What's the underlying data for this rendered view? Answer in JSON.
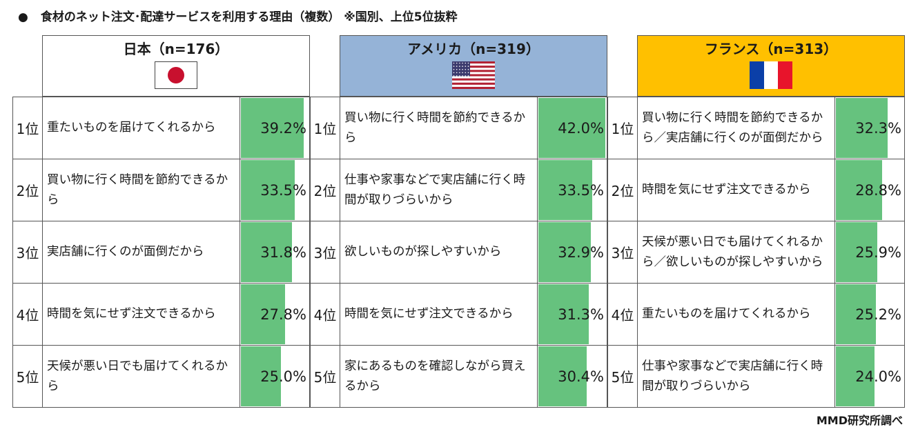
{
  "title_bullet": "●",
  "title": "食材のネット注文･配達サービスを利用する理由（複数） ※国別、上位5位抜粋",
  "footer": "MMD研究所調べ",
  "colors": {
    "bar": "#66c27e",
    "usa_header": "#95b3d7",
    "france_header": "#ffc000",
    "japan_header": "#ffffff"
  },
  "chart_data": [
    {
      "type": "table",
      "country": "日本（n=176）",
      "flag": "japan-flag",
      "ranks": [
        "1位",
        "2位",
        "3位",
        "4位",
        "5位"
      ],
      "reasons": [
        "重たいものを届けてくれるから",
        "買い物に行く時間を節約できるから",
        "実店舗に行くのが面倒だから",
        "時間を気にせず注文できるから",
        "天候が悪い日でも届けてくれるから"
      ],
      "values": [
        39.2,
        33.5,
        31.8,
        27.8,
        25.0
      ],
      "labels": [
        "39.2%",
        "33.5%",
        "31.8%",
        "27.8%",
        "25.0%"
      ]
    },
    {
      "type": "table",
      "country": "アメリカ（n=319）",
      "flag": "usa-flag",
      "ranks": [
        "1位",
        "2位",
        "3位",
        "4位",
        "5位"
      ],
      "reasons": [
        "買い物に行く時間を節約できるから",
        "仕事や家事などで実店舗に行く時間が取りづらいから",
        "欲しいものが探しやすいから",
        "時間を気にせず注文できるから",
        "家にあるものを確認しながら買えるから"
      ],
      "values": [
        42.0,
        33.5,
        32.9,
        31.3,
        30.4
      ],
      "labels": [
        "42.0%",
        "33.5%",
        "32.9%",
        "31.3%",
        "30.4%"
      ]
    },
    {
      "type": "table",
      "country": "フランス（n=313）",
      "flag": "france-flag",
      "ranks": [
        "1位",
        "2位",
        "3位",
        "4位",
        "5位"
      ],
      "reasons": [
        "買い物に行く時間を節約できるから／実店舗に行くのが面倒だから",
        "時間を気にせず注文できるから",
        "天候が悪い日でも届けてくれるから／欲しいものが探しやすいから",
        "重たいものを届けてくれるから",
        "仕事や家事などで実店舗に行く時間が取りづらいから"
      ],
      "values": [
        32.3,
        28.8,
        25.9,
        25.2,
        24.0
      ],
      "labels": [
        "32.3%",
        "28.8%",
        "25.9%",
        "25.2%",
        "24.0%"
      ]
    }
  ]
}
